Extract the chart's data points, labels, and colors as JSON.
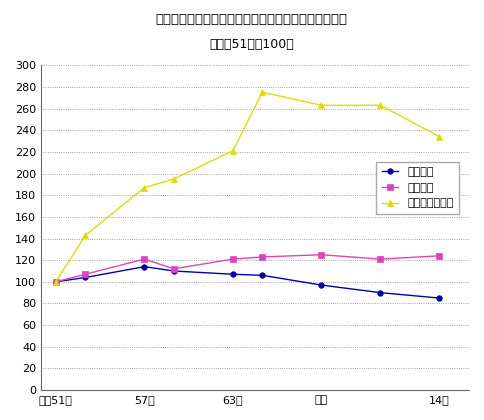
{
  "title_line1": "図－１　事業所数・従業者数・年間商品販売額の推移",
  "title_line2": "（昭和51年＝100）",
  "x_labels": [
    "昭和51年",
    "57年",
    "63年",
    "６年",
    "14年"
  ],
  "x_ticks_pos": [
    0,
    3,
    6,
    9,
    13
  ],
  "series_jigyosho": {
    "name": "事業所数",
    "color": "#0000aa",
    "marker": "o",
    "x": [
      0,
      1,
      3,
      4,
      6,
      7,
      9,
      11,
      13
    ],
    "y": [
      100,
      104,
      114,
      110,
      107,
      106,
      97,
      90,
      85
    ]
  },
  "series_jugyosha": {
    "name": "従業者数",
    "color": "#dd44bb",
    "marker": "s",
    "x": [
      0,
      1,
      3,
      4,
      6,
      7,
      9,
      11,
      13
    ],
    "y": [
      100,
      107,
      121,
      112,
      121,
      123,
      125,
      121,
      124
    ]
  },
  "series_nenkan": {
    "name": "年間商品販売額",
    "color": "#dddd00",
    "marker": "^",
    "x": [
      0,
      1,
      3,
      4,
      6,
      7,
      9,
      11,
      13
    ],
    "y": [
      100,
      143,
      187,
      195,
      221,
      275,
      263,
      263,
      234
    ]
  },
  "ylim": [
    0,
    300
  ],
  "yticks": [
    0,
    20,
    40,
    60,
    80,
    100,
    120,
    140,
    160,
    180,
    200,
    220,
    240,
    260,
    280,
    300
  ],
  "bg_color": "#ffffff",
  "grid_color": "#888888"
}
